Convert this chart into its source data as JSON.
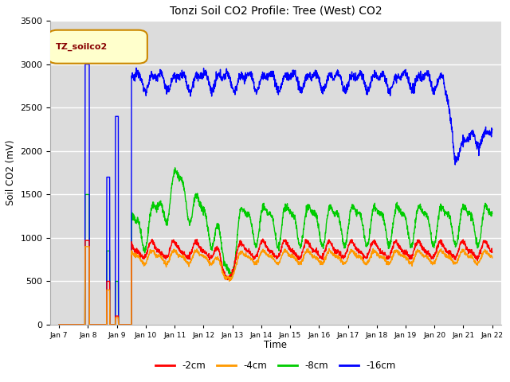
{
  "title": "Tonzi Soil CO2 Profile: Tree (West) CO2",
  "ylabel": "Soil CO2 (mV)",
  "xlabel": "Time",
  "ylim": [
    0,
    3500
  ],
  "background_color": "#ffffff",
  "plot_bg_color": "#dcdcdc",
  "grid_color": "#ffffff",
  "legend_box_label": "TZ_soilco2",
  "legend_box_bg": "#ffffcc",
  "legend_box_edge": "#cc8800",
  "legend_text_color": "#880000",
  "series_colors": {
    "-2cm": "#ff0000",
    "-4cm": "#ff9900",
    "-8cm": "#00cc00",
    "-16cm": "#0000ff"
  },
  "x_tick_labels": [
    "Jan 7",
    "Jan 8",
    "Jan 9",
    "Jan 10",
    "Jan 11",
    "Jan 12",
    "Jan 13",
    "Jan 14",
    "Jan 15",
    "Jan 16",
    "Jan 17",
    "Jan 18",
    "Jan 19",
    "Jan 20",
    "Jan 21",
    "Jan 22"
  ],
  "num_points": 2000
}
